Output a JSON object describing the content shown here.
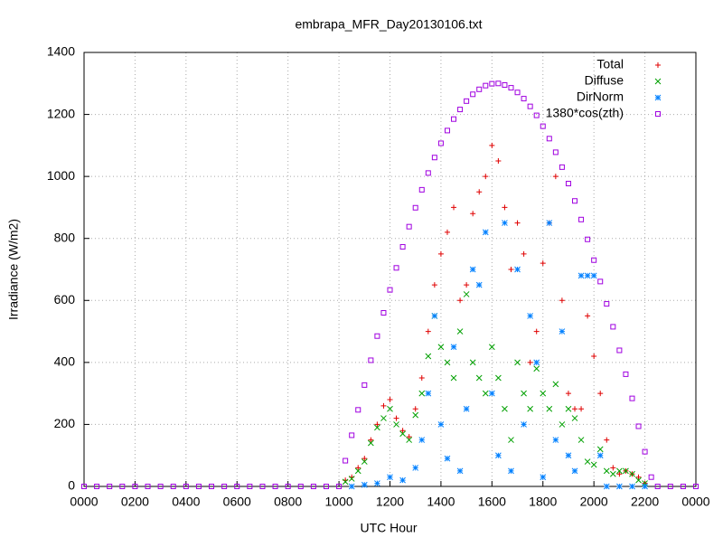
{
  "chart_data": {
    "type": "scatter",
    "title": "embrapa_MFR_Day20130106.txt",
    "xlabel": "UTC Hour",
    "ylabel": "Irradiance (W/m2)",
    "xlim": [
      0,
      24
    ],
    "ylim": [
      0,
      1400
    ],
    "xticks": [
      {
        "value": 0,
        "label": "0000"
      },
      {
        "value": 2,
        "label": "0200"
      },
      {
        "value": 4,
        "label": "0400"
      },
      {
        "value": 6,
        "label": "0600"
      },
      {
        "value": 8,
        "label": "0800"
      },
      {
        "value": 10,
        "label": "1000"
      },
      {
        "value": 12,
        "label": "1200"
      },
      {
        "value": 14,
        "label": "1400"
      },
      {
        "value": 16,
        "label": "1600"
      },
      {
        "value": 18,
        "label": "1800"
      },
      {
        "value": 20,
        "label": "2000"
      },
      {
        "value": 22,
        "label": "2200"
      },
      {
        "value": 24,
        "label": "0000"
      }
    ],
    "yticks": [
      0,
      200,
      400,
      600,
      800,
      1000,
      1200,
      1400
    ],
    "grid": true,
    "legend": "top-right",
    "series": [
      {
        "name": "Total",
        "color": "#e00000",
        "marker": "plus",
        "x": [
          10.25,
          10.5,
          10.75,
          11,
          11.25,
          11.5,
          11.75,
          12,
          12.25,
          12.5,
          12.75,
          13,
          13.25,
          13.5,
          13.75,
          14,
          14.25,
          14.5,
          14.75,
          15,
          15.25,
          15.5,
          15.75,
          16,
          16.25,
          16.5,
          16.75,
          17,
          17.25,
          17.5,
          17.75,
          18,
          18.25,
          18.5,
          18.75,
          19,
          19.25,
          19.5,
          19.75,
          20,
          20.25,
          20.5,
          20.75,
          21,
          21.25,
          21.5,
          21.75,
          22
        ],
        "values": [
          20,
          30,
          60,
          90,
          150,
          200,
          260,
          280,
          220,
          180,
          160,
          250,
          350,
          500,
          650,
          750,
          820,
          900,
          600,
          650,
          880,
          950,
          1000,
          1100,
          1050,
          900,
          700,
          850,
          750,
          400,
          500,
          720,
          850,
          1000,
          600,
          300,
          250,
          250,
          550,
          420,
          300,
          150,
          60,
          40,
          50,
          40,
          30,
          10
        ]
      },
      {
        "name": "Diffuse",
        "color": "#00a000",
        "marker": "cross",
        "x": [
          10.25,
          10.5,
          10.75,
          11,
          11.25,
          11.5,
          11.75,
          12,
          12.25,
          12.5,
          12.75,
          13,
          13.25,
          13.5,
          13.75,
          14,
          14.25,
          14.5,
          14.75,
          15,
          15.25,
          15.5,
          15.75,
          16,
          16.25,
          16.5,
          16.75,
          17,
          17.25,
          17.5,
          17.75,
          18,
          18.25,
          18.5,
          18.75,
          19,
          19.25,
          19.5,
          19.75,
          20,
          20.25,
          20.5,
          20.75,
          21,
          21.25,
          21.5,
          21.75,
          22
        ],
        "values": [
          15,
          25,
          50,
          80,
          140,
          190,
          220,
          250,
          200,
          170,
          150,
          230,
          300,
          420,
          550,
          450,
          400,
          350,
          500,
          620,
          400,
          350,
          300,
          450,
          350,
          250,
          150,
          400,
          300,
          250,
          380,
          300,
          250,
          330,
          200,
          250,
          220,
          150,
          80,
          70,
          120,
          50,
          40,
          50,
          50,
          40,
          20,
          10
        ]
      },
      {
        "name": "DirNorm",
        "color": "#0080ff",
        "marker": "star",
        "x": [
          10.5,
          11,
          11.5,
          12,
          12.5,
          13,
          13.25,
          13.5,
          13.75,
          14,
          14.25,
          14.5,
          14.75,
          15,
          15.25,
          15.5,
          15.75,
          16,
          16.25,
          16.5,
          16.75,
          17,
          17.25,
          17.5,
          17.75,
          18,
          18.25,
          18.5,
          18.75,
          19,
          19.25,
          19.5,
          19.75,
          20,
          20.25,
          20.5,
          21,
          21.5,
          22
        ],
        "values": [
          0,
          5,
          10,
          30,
          20,
          60,
          150,
          300,
          550,
          200,
          90,
          450,
          50,
          250,
          700,
          650,
          820,
          300,
          100,
          850,
          50,
          700,
          200,
          550,
          400,
          30,
          850,
          150,
          500,
          100,
          50,
          680,
          680,
          680,
          100,
          0,
          0,
          0,
          0
        ]
      },
      {
        "name": "1380*cos(zth)",
        "color": "#a000e0",
        "marker": "square",
        "x": [
          0,
          0.5,
          1,
          1.5,
          2,
          2.5,
          3,
          3.5,
          4,
          4.5,
          5,
          5.5,
          6,
          6.5,
          7,
          7.5,
          8,
          8.5,
          9,
          9.5,
          10,
          10.25,
          10.5,
          10.75,
          11,
          11.25,
          11.5,
          11.75,
          12,
          12.25,
          12.5,
          12.75,
          13,
          13.25,
          13.5,
          13.75,
          14,
          14.25,
          14.5,
          14.75,
          15,
          15.25,
          15.5,
          15.75,
          16,
          16.25,
          16.5,
          16.75,
          17,
          17.25,
          17.5,
          17.75,
          18,
          18.25,
          18.5,
          18.75,
          19,
          19.25,
          19.5,
          19.75,
          20,
          20.25,
          20.5,
          20.75,
          21,
          21.25,
          21.5,
          21.75,
          22,
          22.25,
          22.5,
          23,
          23.5,
          24
        ],
        "values": [
          0,
          0,
          0,
          0,
          0,
          0,
          0,
          0,
          0,
          0,
          0,
          0,
          0,
          0,
          0,
          0,
          0,
          0,
          0,
          0,
          0,
          83,
          165,
          247,
          327,
          407,
          485,
          560,
          634,
          705,
          773,
          838,
          899,
          957,
          1011,
          1061,
          1107,
          1148,
          1185,
          1216,
          1243,
          1265,
          1281,
          1293,
          1299,
          1300,
          1295,
          1286,
          1271,
          1251,
          1226,
          1197,
          1162,
          1122,
          1078,
          1030,
          977,
          921,
          861,
          797,
          730,
          661,
          589,
          515,
          439,
          362,
          284,
          194,
          112,
          30,
          0,
          0,
          0,
          0
        ]
      }
    ]
  }
}
